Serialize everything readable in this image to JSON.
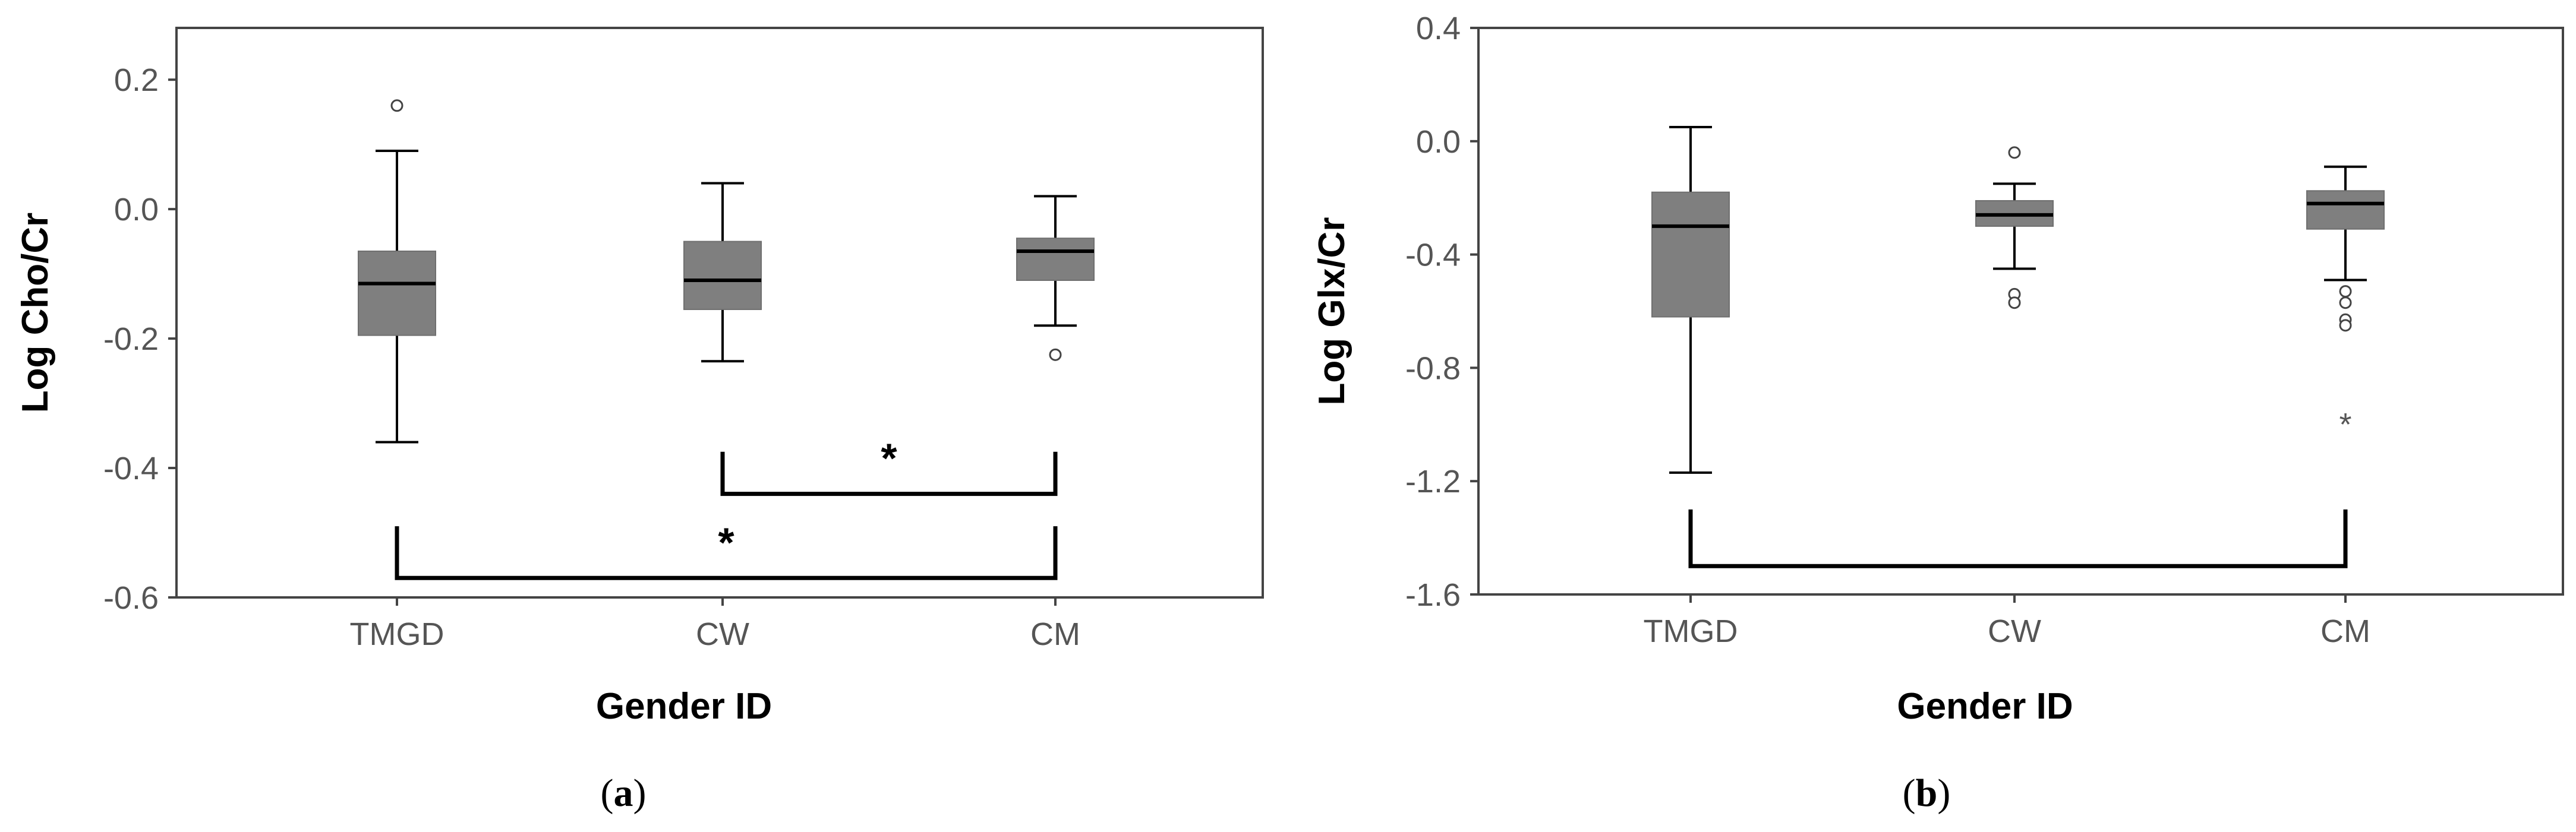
{
  "chart_data": [
    {
      "type": "box",
      "panel_label": "a",
      "xlabel": "Gender ID",
      "ylabel": "Log Cho/Cr",
      "ylim": [
        -0.6,
        0.28
      ],
      "yticks": [
        "-0.6",
        "-0.4",
        "-0.2",
        "0.0",
        "0.2"
      ],
      "ytick_values": [
        -0.6,
        -0.4,
        -0.2,
        0.0,
        0.2
      ],
      "categories": [
        "TMGD",
        "CW",
        "CM"
      ],
      "box_color": "#7f7f7f",
      "boxes": [
        {
          "category": "TMGD",
          "min": -0.36,
          "q1": -0.195,
          "median": -0.115,
          "q3": -0.065,
          "max": 0.09,
          "outliers": [
            0.16
          ],
          "extremes": []
        },
        {
          "category": "CW",
          "min": -0.235,
          "q1": -0.155,
          "median": -0.11,
          "q3": -0.05,
          "max": 0.04,
          "outliers": [],
          "extremes": []
        },
        {
          "category": "CM",
          "min": -0.18,
          "q1": -0.11,
          "median": -0.065,
          "q3": -0.045,
          "max": 0.02,
          "outliers": [
            -0.225
          ],
          "extremes": []
        }
      ],
      "significance": [
        {
          "from": "CW",
          "to": "CM",
          "label": "*",
          "y": -0.44,
          "tick_top": -0.375
        },
        {
          "from": "TMGD",
          "to": "CM",
          "label": "*",
          "y": -0.57,
          "tick_top": -0.49
        }
      ]
    },
    {
      "type": "box",
      "panel_label": "b",
      "xlabel": "Gender ID",
      "ylabel": "Log Glx/Cr",
      "ylim": [
        -1.6,
        0.4
      ],
      "yticks": [
        "-1.6",
        "-1.2",
        "-0.8",
        "-0.4",
        "0.0",
        "0.4"
      ],
      "ytick_values": [
        -1.6,
        -1.2,
        -0.8,
        -0.4,
        0.0,
        0.4
      ],
      "categories": [
        "TMGD",
        "CW",
        "CM"
      ],
      "box_color": "#7f7f7f",
      "boxes": [
        {
          "category": "TMGD",
          "min": -1.17,
          "q1": -0.62,
          "median": -0.3,
          "q3": -0.18,
          "max": 0.05,
          "outliers": [],
          "extremes": []
        },
        {
          "category": "CW",
          "min": -0.45,
          "q1": -0.3,
          "median": -0.26,
          "q3": -0.21,
          "max": -0.15,
          "outliers": [
            -0.04,
            -0.54,
            -0.57
          ],
          "extremes": []
        },
        {
          "category": "CM",
          "min": -0.49,
          "q1": -0.31,
          "median": -0.22,
          "q3": -0.175,
          "max": -0.09,
          "outliers": [
            -0.53,
            -0.57,
            -0.63,
            -0.65
          ],
          "extremes": [
            -1.0
          ]
        }
      ],
      "significance": [
        {
          "from": "TMGD",
          "to": "CM",
          "label": "",
          "y": -1.5,
          "tick_top": -1.3
        }
      ]
    }
  ]
}
